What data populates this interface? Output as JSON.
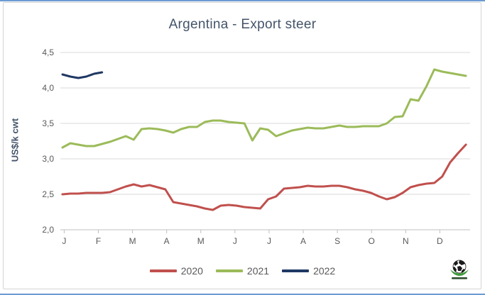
{
  "chart_data": {
    "type": "line",
    "title": "Argentina - Export steer",
    "ylabel": "US$/k cwt",
    "ylim": [
      2.0,
      4.5
    ],
    "y_tick_labels": [
      "4,5",
      "4,0",
      "3,5",
      "3,0",
      "2,5",
      "2,0"
    ],
    "y_tick_values": [
      4.5,
      4.0,
      3.5,
      3.0,
      2.5,
      2.0
    ],
    "x_tick_labels": [
      "J",
      "F",
      "M",
      "A",
      "M",
      "J",
      "J",
      "A",
      "S",
      "O",
      "N",
      "D"
    ],
    "x_unit": "weekly",
    "grid": "horizontal-only",
    "legend_position": "bottom",
    "series": [
      {
        "name": "2020",
        "color": "#c0504d",
        "values": [
          2.5,
          2.51,
          2.51,
          2.52,
          2.52,
          2.52,
          2.53,
          2.57,
          2.61,
          2.64,
          2.61,
          2.63,
          2.6,
          2.57,
          2.39,
          2.37,
          2.35,
          2.33,
          2.3,
          2.28,
          2.34,
          2.35,
          2.34,
          2.32,
          2.31,
          2.3,
          2.43,
          2.47,
          2.58,
          2.59,
          2.6,
          2.62,
          2.61,
          2.61,
          2.62,
          2.62,
          2.6,
          2.57,
          2.55,
          2.52,
          2.47,
          2.43,
          2.46,
          2.52,
          2.6,
          2.63,
          2.65,
          2.66,
          2.75,
          2.95,
          3.08,
          3.2
        ]
      },
      {
        "name": "2021",
        "color": "#9bbb59",
        "values": [
          3.16,
          3.22,
          3.2,
          3.18,
          3.18,
          3.21,
          3.24,
          3.28,
          3.32,
          3.27,
          3.42,
          3.43,
          3.42,
          3.4,
          3.37,
          3.42,
          3.45,
          3.45,
          3.52,
          3.54,
          3.54,
          3.52,
          3.51,
          3.5,
          3.26,
          3.43,
          3.41,
          3.32,
          3.36,
          3.4,
          3.42,
          3.44,
          3.43,
          3.43,
          3.45,
          3.47,
          3.45,
          3.45,
          3.46,
          3.46,
          3.46,
          3.5,
          3.59,
          3.6,
          3.84,
          3.82,
          4.02,
          4.26,
          4.23,
          4.21,
          4.19,
          4.17
        ]
      },
      {
        "name": "2022",
        "color": "#1f3864",
        "values": [
          4.19,
          4.16,
          4.14,
          4.16,
          4.2,
          4.22
        ]
      }
    ]
  }
}
